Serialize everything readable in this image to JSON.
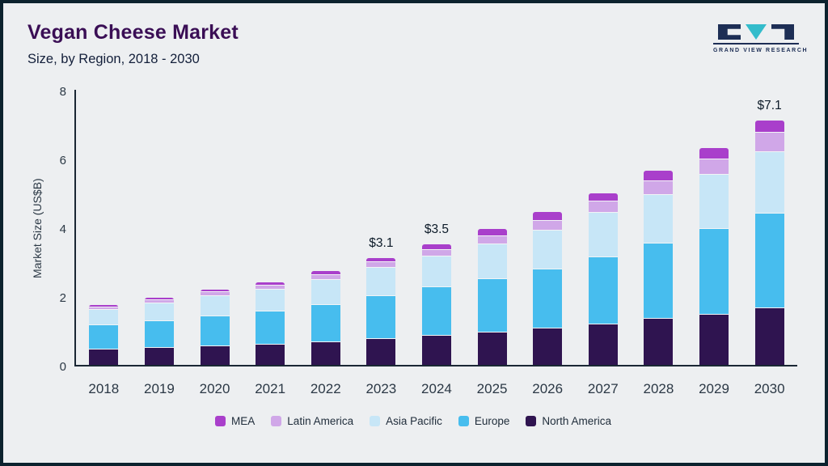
{
  "header": {
    "title": "Vegan Cheese Market",
    "subtitle": "Size, by Region, 2018 - 2030"
  },
  "logo": {
    "text": "GRAND VIEW RESEARCH"
  },
  "colors": {
    "frame": "#0c222e",
    "background": "#edeff1",
    "title": "#3a0e55",
    "axis": "#1a2734"
  },
  "chart_data": {
    "type": "bar",
    "stacked": true,
    "title": "Vegan Cheese Market Size, by Region, 2018 - 2030",
    "xlabel": "",
    "ylabel": "Market Size (US$B)",
    "ylim": [
      0,
      8
    ],
    "yticks": [
      0,
      2,
      4,
      6,
      8
    ],
    "grid": false,
    "legend_position": "bottom",
    "categories": [
      "2018",
      "2019",
      "2020",
      "2021",
      "2022",
      "2023",
      "2024",
      "2025",
      "2026",
      "2027",
      "2028",
      "2029",
      "2030"
    ],
    "series": [
      {
        "name": "North America",
        "color": "#2f1450",
        "values": [
          0.45,
          0.5,
          0.55,
          0.6,
          0.67,
          0.75,
          0.85,
          0.95,
          1.05,
          1.18,
          1.33,
          1.45,
          1.65
        ]
      },
      {
        "name": "Europe",
        "color": "#47bdee",
        "values": [
          0.7,
          0.78,
          0.87,
          0.95,
          1.08,
          1.25,
          1.4,
          1.55,
          1.72,
          1.95,
          2.2,
          2.5,
          2.75
        ]
      },
      {
        "name": "Asia Pacific",
        "color": "#c7e6f7",
        "values": [
          0.45,
          0.5,
          0.58,
          0.63,
          0.73,
          0.82,
          0.9,
          1.0,
          1.13,
          1.3,
          1.42,
          1.58,
          1.8
        ]
      },
      {
        "name": "Latin America",
        "color": "#d0a7e8",
        "values": [
          0.08,
          0.1,
          0.11,
          0.12,
          0.13,
          0.16,
          0.2,
          0.25,
          0.3,
          0.32,
          0.4,
          0.45,
          0.55
        ]
      },
      {
        "name": "MEA",
        "color": "#a93fcb",
        "values": [
          0.07,
          0.08,
          0.09,
          0.1,
          0.11,
          0.12,
          0.15,
          0.2,
          0.25,
          0.25,
          0.3,
          0.32,
          0.35
        ]
      }
    ],
    "totals": [
      1.75,
      1.96,
      2.2,
      2.4,
      2.72,
      3.1,
      3.5,
      3.95,
      4.45,
      5.0,
      5.65,
      6.3,
      7.1
    ],
    "annotations": [
      {
        "category": "2023",
        "text": "$3.1"
      },
      {
        "category": "2024",
        "text": "$3.5"
      },
      {
        "category": "2030",
        "text": "$7.1"
      }
    ],
    "legend": [
      {
        "label": "MEA",
        "color": "#a93fcb"
      },
      {
        "label": "Latin America",
        "color": "#d0a7e8"
      },
      {
        "label": "Asia Pacific",
        "color": "#c7e6f7"
      },
      {
        "label": "Europe",
        "color": "#47bdee"
      },
      {
        "label": "North America",
        "color": "#2f1450"
      }
    ]
  }
}
